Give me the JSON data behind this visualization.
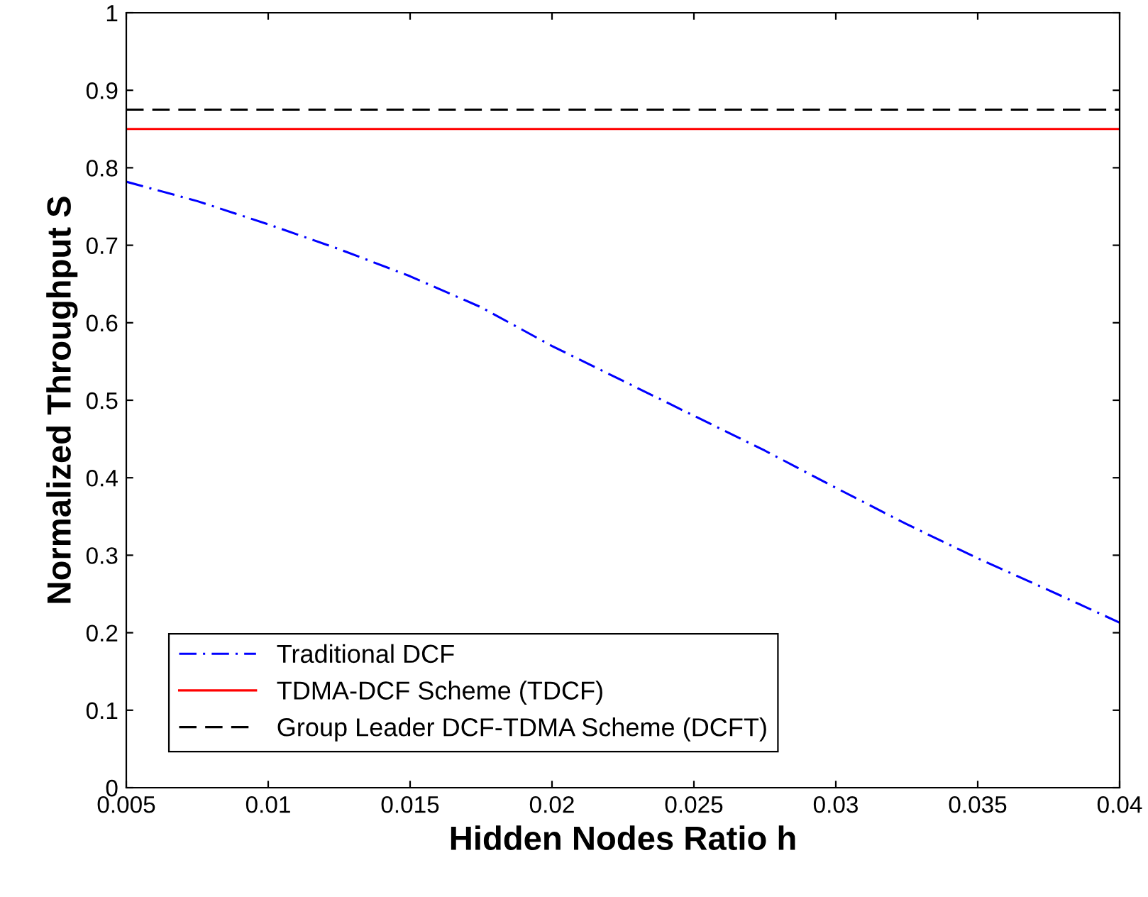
{
  "chart_data": {
    "type": "line",
    "xlabel": "Hidden Nodes Ratio h",
    "ylabel": "Normalized Throughput S",
    "x": [
      0.005,
      0.0075,
      0.01,
      0.0125,
      0.015,
      0.0175,
      0.02,
      0.0225,
      0.025,
      0.0275,
      0.03,
      0.0325,
      0.035,
      0.0375,
      0.04
    ],
    "series": [
      {
        "name": "Traditional DCF",
        "color": "#0000ff",
        "line_style": "dashdot",
        "values": [
          0.782,
          0.757,
          0.727,
          0.695,
          0.66,
          0.62,
          0.57,
          0.525,
          0.48,
          0.435,
          0.387,
          0.34,
          0.296,
          0.255,
          0.213
        ]
      },
      {
        "name": "TDMA-DCF Scheme (TDCF)",
        "color": "#ff0000",
        "line_style": "solid",
        "values": [
          0.85,
          0.85,
          0.85,
          0.85,
          0.85,
          0.85,
          0.85,
          0.85,
          0.85,
          0.85,
          0.85,
          0.85,
          0.85,
          0.85,
          0.85
        ]
      },
      {
        "name": "Group Leader DCF-TDMA Scheme (DCFT)",
        "color": "#000000",
        "line_style": "dashed",
        "values": [
          0.875,
          0.875,
          0.875,
          0.875,
          0.875,
          0.875,
          0.875,
          0.875,
          0.875,
          0.875,
          0.875,
          0.875,
          0.875,
          0.875,
          0.875
        ]
      }
    ],
    "xlim": [
      0.005,
      0.04
    ],
    "xticks": [
      0.005,
      0.01,
      0.015,
      0.02,
      0.025,
      0.03,
      0.035,
      0.04
    ],
    "ylim": [
      0,
      1
    ],
    "yticks": [
      0,
      0.1,
      0.2,
      0.3,
      0.4,
      0.5,
      0.6,
      0.7,
      0.8,
      0.9,
      1
    ],
    "grid": false,
    "legend": "bottom left",
    "marker": "none"
  }
}
